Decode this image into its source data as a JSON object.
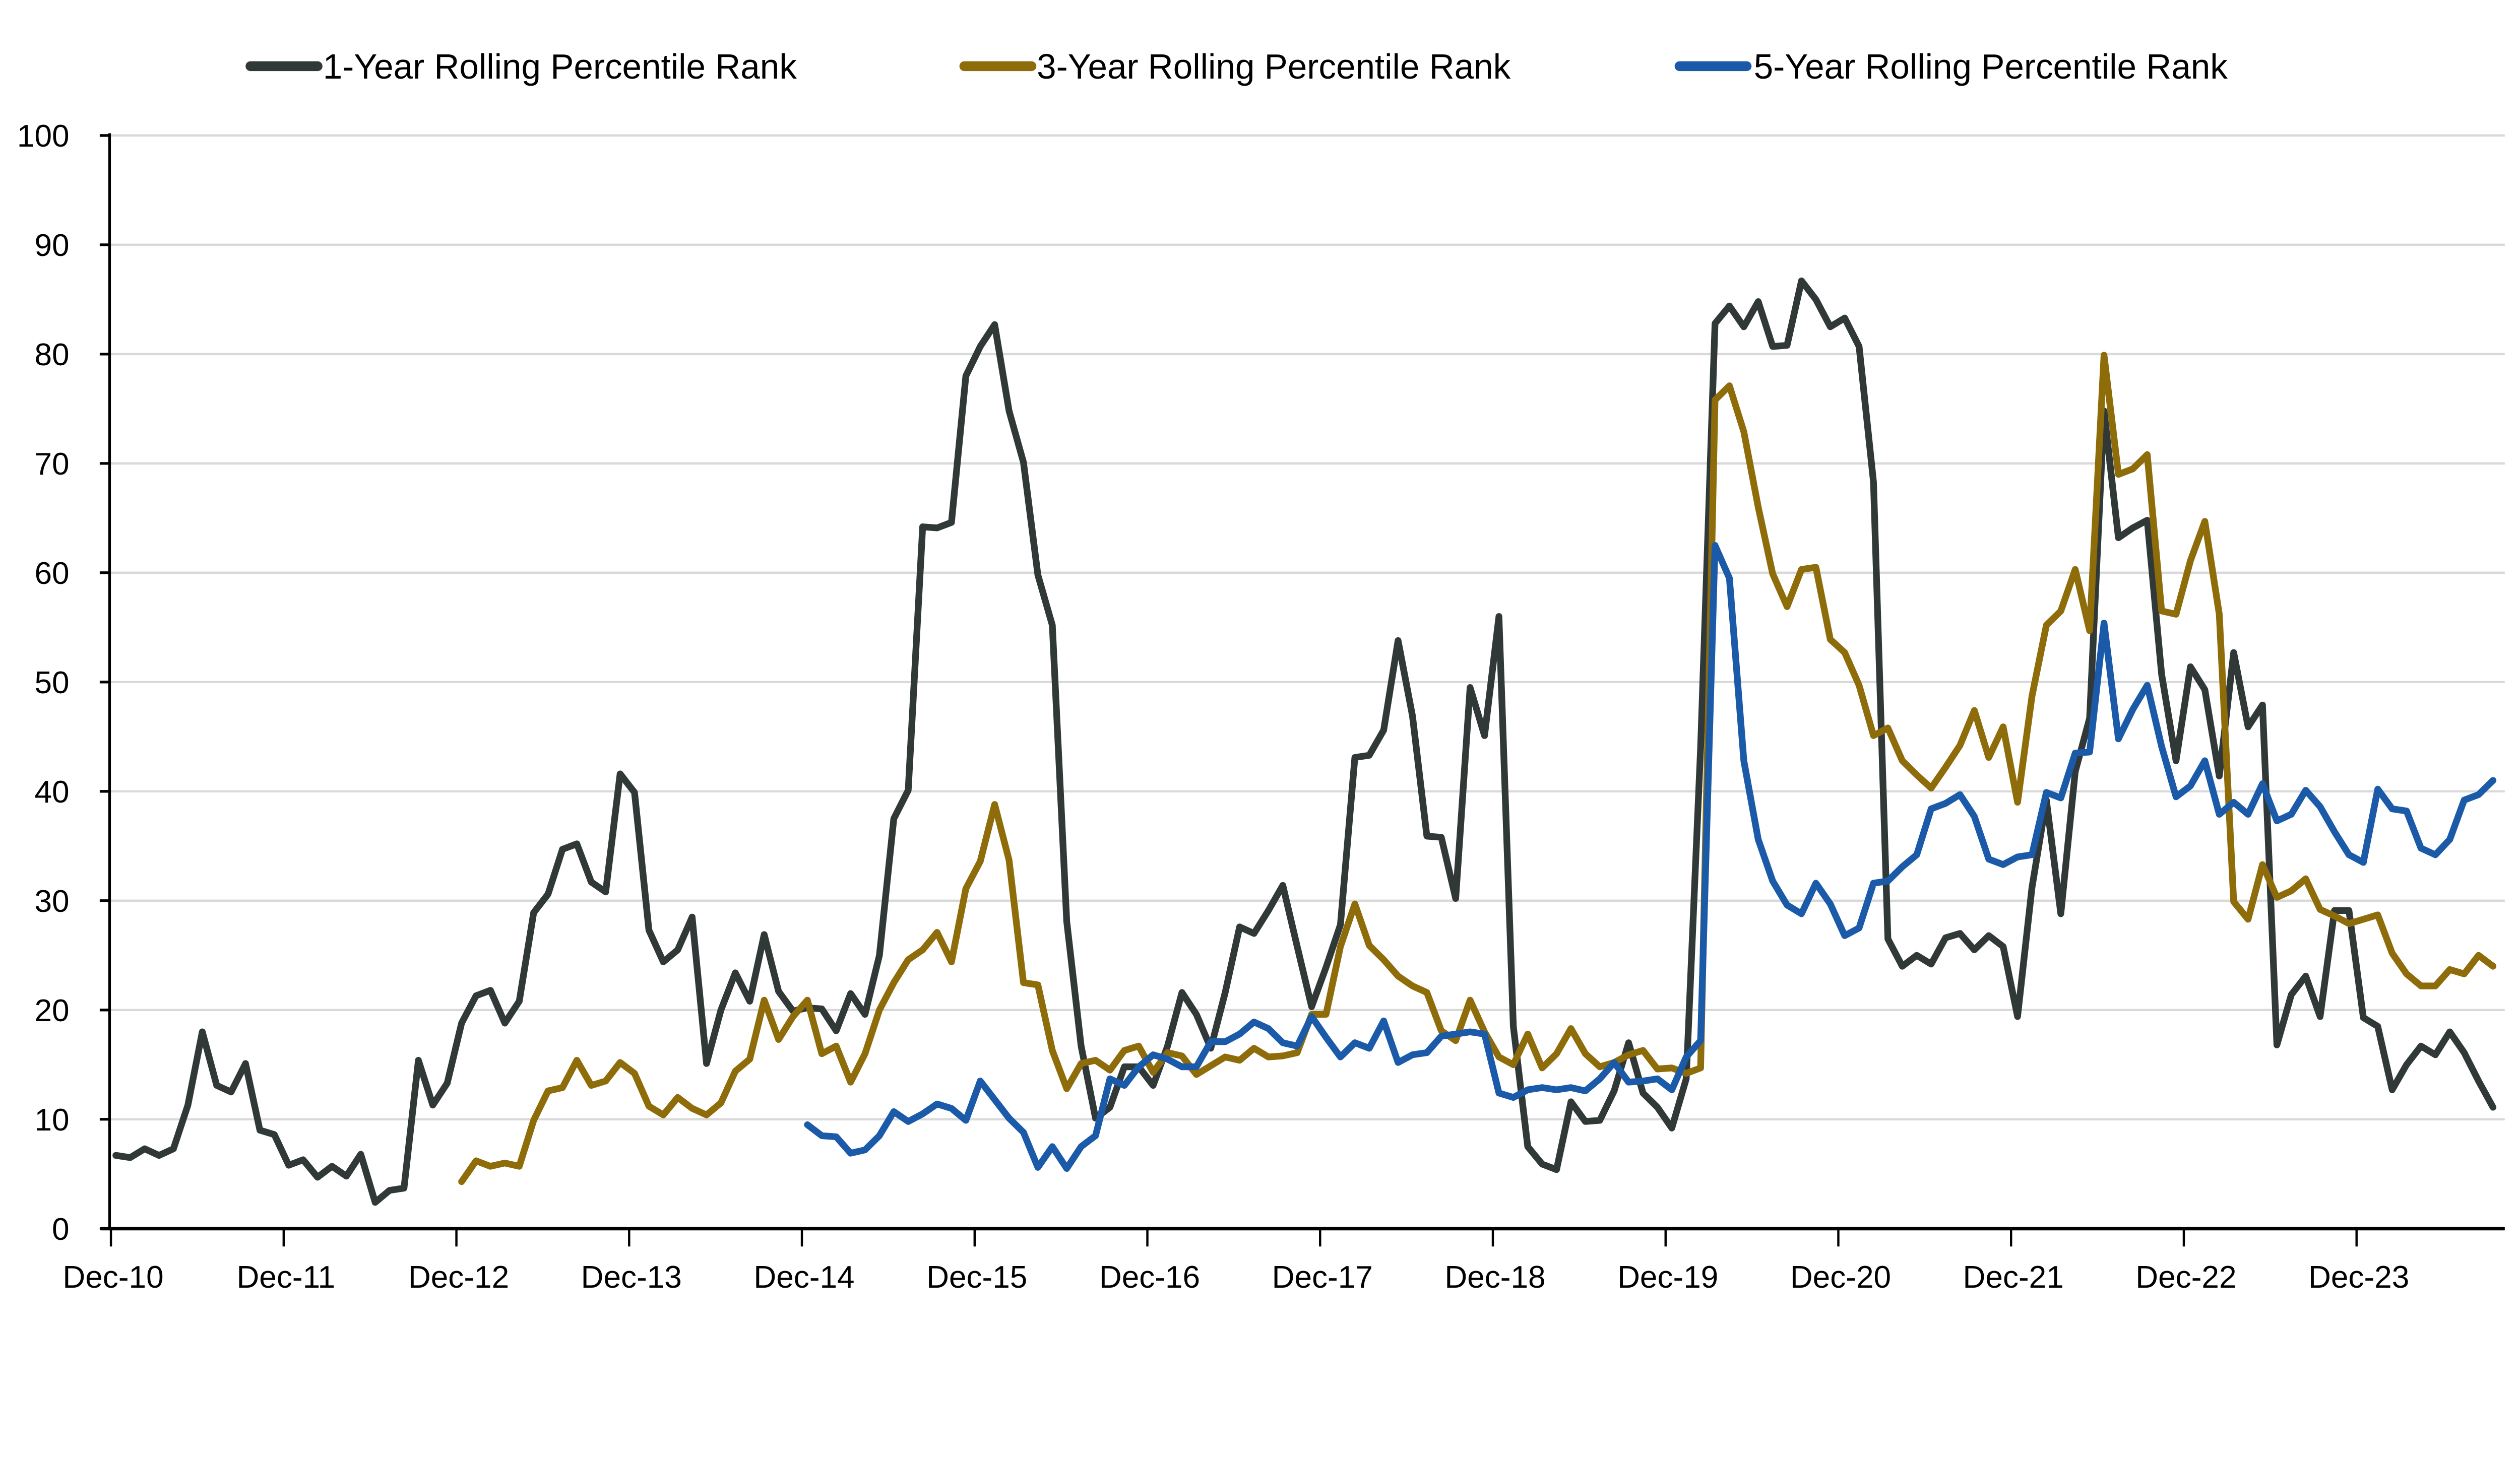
{
  "chart_data": {
    "type": "line",
    "title": "",
    "xlabel": "",
    "ylabel": "",
    "frequency": "monthly",
    "x_start": "Dec-10",
    "x_tick_labels": [
      "Dec-10",
      "Dec-11",
      "Dec-12",
      "Dec-13",
      "Dec-14",
      "Dec-15",
      "Dec-16",
      "Dec-17",
      "Dec-18",
      "Dec-19",
      "Dec-20",
      "Dec-21",
      "Dec-22",
      "Dec-23"
    ],
    "y_tick_labels": [
      "0",
      "10",
      "20",
      "30",
      "40",
      "50",
      "60",
      "70",
      "80",
      "90",
      "100"
    ],
    "ylim": [
      0,
      100
    ],
    "grid": "horizontal",
    "legend_position": "top",
    "series": [
      {
        "name": "1-Year Rolling Percentile Rank",
        "color": "#313938",
        "start_offset_months": 0,
        "values": [
          6.7,
          6.5,
          7.3,
          6.7,
          7.3,
          11.3,
          18.0,
          13.1,
          12.5,
          15.1,
          9.0,
          8.6,
          5.8,
          6.3,
          4.7,
          5.7,
          4.8,
          6.8,
          2.4,
          3.5,
          3.7,
          15.4,
          11.3,
          13.3,
          18.8,
          21.3,
          21.8,
          18.8,
          20.8,
          28.9,
          30.6,
          34.7,
          35.2,
          31.7,
          30.8,
          41.6,
          39.9,
          27.3,
          24.4,
          25.5,
          28.5,
          15.1,
          20.0,
          23.4,
          20.8,
          26.9,
          21.7,
          19.9,
          20.2,
          20.1,
          18.1,
          21.5,
          19.6,
          25.0,
          37.5,
          40.1,
          64.2,
          64.1,
          64.6,
          78.0,
          80.7,
          82.7,
          74.8,
          70.1,
          59.8,
          55.2,
          28.1,
          16.7,
          10.1,
          11.1,
          14.8,
          14.8,
          13.1,
          16.7,
          21.6,
          19.6,
          16.5,
          21.6,
          27.6,
          27.0,
          29.1,
          31.4,
          25.8,
          20.3,
          23.9,
          27.8,
          43.1,
          43.3,
          45.6,
          53.8,
          46.9,
          35.9,
          35.8,
          30.2,
          49.5,
          45.1,
          56.0,
          18.5,
          7.5,
          5.9,
          5.4,
          11.6,
          9.8,
          9.9,
          12.6,
          17.0,
          12.4,
          11.1,
          9.2,
          13.7,
          44.0,
          82.8,
          84.4,
          82.5,
          84.8,
          80.7,
          80.8,
          86.7,
          85.0,
          82.5,
          83.3,
          80.7,
          68.3,
          26.5,
          24.0,
          25.0,
          24.2,
          26.6,
          27.0,
          25.5,
          26.8,
          25.8,
          19.4,
          31.2,
          39.2,
          28.8,
          41.8,
          46.7,
          74.8,
          63.2,
          64.1,
          64.8,
          50.7,
          42.8,
          51.4,
          49.3,
          41.4,
          52.7,
          45.9,
          47.9,
          16.8,
          21.4,
          23.1,
          19.4,
          29.1,
          29.1,
          19.3,
          18.5,
          12.7,
          15.0,
          16.7,
          15.9,
          18.0,
          16.1,
          13.5,
          11.1
        ]
      },
      {
        "name": "3-Year Rolling Percentile Rank",
        "color": "#8E6C0A",
        "start_offset_months": 24,
        "values": [
          4.3,
          6.2,
          5.7,
          6.0,
          5.7,
          9.9,
          12.6,
          12.9,
          15.4,
          13.1,
          13.5,
          15.2,
          14.2,
          11.2,
          10.4,
          12.0,
          11.0,
          10.4,
          11.5,
          14.4,
          15.5,
          20.9,
          17.3,
          19.4,
          20.9,
          16.0,
          16.7,
          13.4,
          16.0,
          20.0,
          22.5,
          24.6,
          25.5,
          27.1,
          24.4,
          31.1,
          33.6,
          38.8,
          33.7,
          22.5,
          22.3,
          16.3,
          12.8,
          15.1,
          15.4,
          14.5,
          16.3,
          16.7,
          14.3,
          16.1,
          15.8,
          14.1,
          14.9,
          15.7,
          15.4,
          16.5,
          15.7,
          15.8,
          16.1,
          19.6,
          19.6,
          25.8,
          29.7,
          25.9,
          24.6,
          23.1,
          22.2,
          21.6,
          18.1,
          17.2,
          20.9,
          18.0,
          15.7,
          15.0,
          17.8,
          14.7,
          16.0,
          18.3,
          16.0,
          14.8,
          15.2,
          15.9,
          16.3,
          14.6,
          14.7,
          14.2,
          14.7,
          75.8,
          77.1,
          72.9,
          66.0,
          59.9,
          56.9,
          60.3,
          60.5,
          53.9,
          52.7,
          49.7,
          45.1,
          45.8,
          42.8,
          41.5,
          40.3,
          42.2,
          44.2,
          47.4,
          43.1,
          45.9,
          39.0,
          48.7,
          55.2,
          56.5,
          60.3,
          54.7,
          79.9,
          69.0,
          69.5,
          70.8,
          56.5,
          56.2,
          61.1,
          64.7,
          56.2,
          29.9,
          28.3,
          33.3,
          30.3,
          30.9,
          32.0,
          29.2,
          28.6,
          27.9,
          28.3,
          28.7,
          25.2,
          23.3,
          22.2,
          22.2,
          23.7,
          23.3,
          25.0,
          24.0
        ]
      },
      {
        "name": "5-Year Rolling Percentile Rank",
        "color": "#1B5AA8",
        "start_offset_months": 48,
        "values": [
          9.5,
          8.5,
          8.4,
          6.9,
          7.2,
          8.5,
          10.7,
          9.8,
          10.5,
          11.4,
          11.0,
          9.9,
          13.5,
          11.8,
          10.1,
          8.8,
          5.6,
          7.5,
          5.5,
          7.5,
          8.5,
          13.7,
          13.1,
          14.8,
          15.9,
          15.5,
          14.8,
          14.8,
          17.1,
          17.1,
          17.8,
          18.9,
          18.3,
          17.0,
          16.7,
          19.4,
          17.5,
          15.7,
          17.0,
          16.5,
          19.0,
          15.2,
          15.9,
          16.1,
          17.6,
          17.8,
          18.0,
          17.8,
          12.4,
          12.0,
          12.7,
          12.9,
          12.7,
          12.9,
          12.6,
          13.7,
          15.2,
          13.4,
          13.5,
          13.7,
          12.7,
          15.7,
          17.2,
          62.5,
          59.5,
          42.8,
          35.6,
          31.8,
          29.6,
          28.8,
          31.6,
          29.7,
          26.8,
          27.5,
          31.6,
          31.8,
          33.1,
          34.2,
          38.4,
          38.9,
          39.7,
          37.7,
          33.8,
          33.3,
          34.0,
          34.2,
          39.9,
          39.4,
          43.5,
          43.6,
          55.4,
          44.8,
          47.5,
          49.7,
          44.1,
          39.5,
          40.5,
          42.8,
          37.9,
          39.0,
          37.9,
          40.7,
          37.3,
          37.9,
          40.1,
          38.6,
          36.3,
          34.2,
          33.5,
          40.2,
          38.4,
          38.2,
          34.8,
          34.2,
          35.6,
          39.2,
          39.7,
          41.0
        ]
      }
    ]
  }
}
